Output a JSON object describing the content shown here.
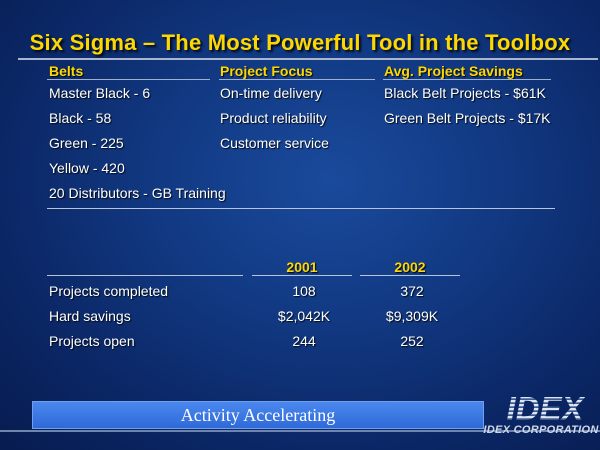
{
  "title": "Six Sigma – The Most Powerful Tool in the Toolbox",
  "top_table": {
    "headers": [
      "Belts",
      "Project Focus",
      "Avg. Project Savings"
    ],
    "belts": [
      "Master Black - 6",
      "Black - 58",
      "Green - 225",
      "Yellow - 420",
      "20 Distributors - GB Training"
    ],
    "project_focus": [
      "On-time delivery",
      "Product reliability",
      "Customer service"
    ],
    "savings": [
      "Black Belt Projects - $61K",
      "Green Belt Projects - $17K"
    ]
  },
  "stats_table": {
    "years": [
      "2001",
      "2002"
    ],
    "rows": [
      {
        "label": "Projects completed",
        "values": [
          "108",
          "372"
        ]
      },
      {
        "label": "Hard savings",
        "values": [
          "$2,042K",
          "$9,309K"
        ]
      },
      {
        "label": "Projects open",
        "values": [
          "244",
          "252"
        ]
      }
    ]
  },
  "banner": {
    "text": "Activity Accelerating"
  },
  "logo": {
    "mark": "IDEX",
    "caption": "IDEX CORPORATION"
  },
  "colors": {
    "heading": "#ffd700",
    "background": "#123a84",
    "banner": "#3a78e4"
  }
}
